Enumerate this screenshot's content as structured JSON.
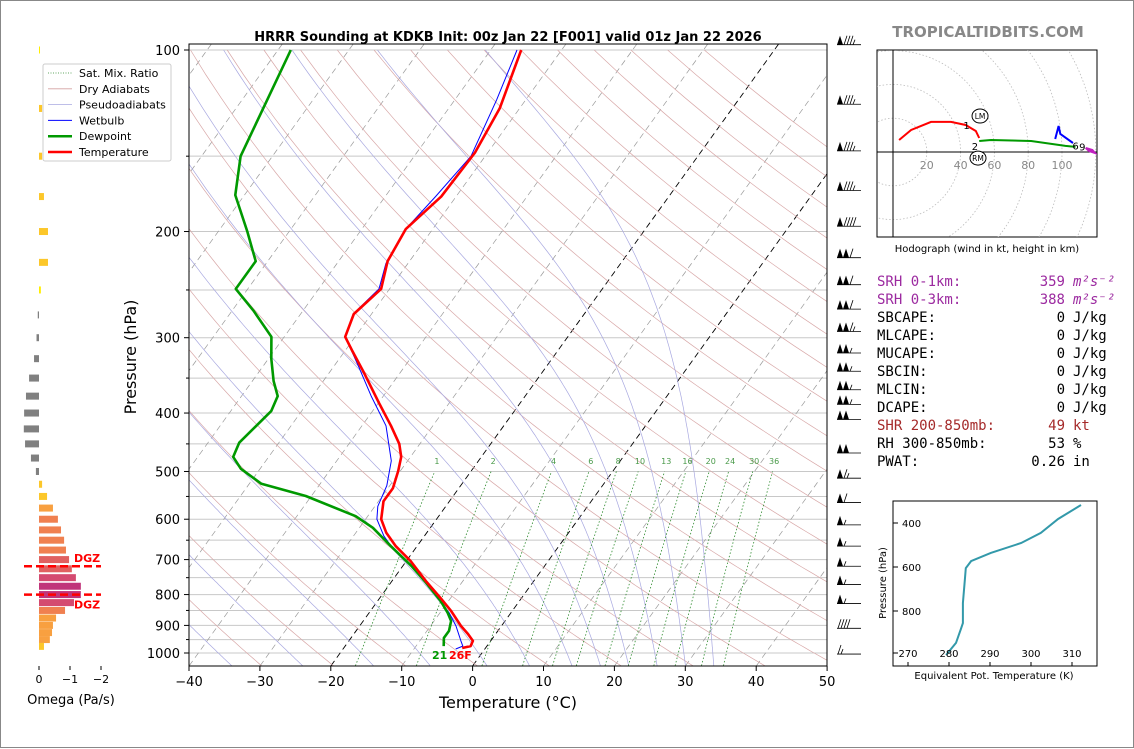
{
  "title": "HRRR Sounding at KDKB Init: 00z Jan 22 [F001] valid 01z Jan 22 2026",
  "watermark": "TROPICALTIDBITS.COM",
  "chart_data": [
    {
      "type": "line",
      "name": "skew-t",
      "xlabel": "Temperature (°C)",
      "ylabel": "Pressure (hPa)",
      "xlim": [
        -40,
        50
      ],
      "ylim": [
        1050,
        98
      ],
      "x_ticks": [
        -40,
        -30,
        -20,
        -10,
        0,
        10,
        20,
        30,
        40,
        50
      ],
      "x_tick_labels": [
        "−40",
        "−30",
        "−20",
        "−10",
        "0",
        "10",
        "20",
        "30",
        "40",
        "50"
      ],
      "y_ticks": [
        100,
        200,
        300,
        400,
        500,
        600,
        700,
        800,
        900,
        1000
      ],
      "y_tick_labels": [
        "100",
        "200",
        "300",
        "400",
        "500",
        "600",
        "700",
        "800",
        "900",
        "1000"
      ],
      "grid_pressures": [
        100,
        150,
        200,
        250,
        300,
        350,
        400,
        450,
        500,
        550,
        600,
        650,
        700,
        750,
        800,
        850,
        900,
        950,
        1000
      ],
      "legend": {
        "placement": "top-left",
        "entries": [
          {
            "label": "Sat. Mix. Ratio",
            "color": "#2e8b2e",
            "style": "dotted"
          },
          {
            "label": "Dry Adiabats",
            "color": "#d4a0a0",
            "style": "solid"
          },
          {
            "label": "Pseudoadiabats",
            "color": "#a8a8e0",
            "style": "solid"
          },
          {
            "label": "Wetbulb",
            "color": "#0000ff",
            "style": "solid"
          },
          {
            "label": "Dewpoint",
            "color": "#009900",
            "style": "solid"
          },
          {
            "label": "Temperature",
            "color": "#ff0000",
            "style": "solid"
          }
        ]
      },
      "series": [
        {
          "name": "Temperature",
          "color": "#ff0000",
          "pressure": [
            981,
            974,
            955,
            930,
            902,
            852,
            811,
            760,
            704,
            665,
            632,
            600,
            560,
            533,
            499,
            473,
            450,
            420,
            385,
            343,
            316,
            299,
            274,
            249,
            224,
            198,
            175,
            148,
            125,
            100
          ],
          "temp_c": [
            -3.3,
            -2.3,
            -2.5,
            -3.9,
            -5.7,
            -8.6,
            -11.4,
            -15.2,
            -19.4,
            -23.0,
            -25.7,
            -27.8,
            -29.3,
            -29.3,
            -30.3,
            -31.3,
            -32.9,
            -35.9,
            -39.9,
            -45.1,
            -48.9,
            -51.4,
            -52.5,
            -51.2,
            -53.1,
            -53.8,
            -52.1,
            -51.8,
            -52.8,
            -55.7
          ]
        },
        {
          "name": "Dewpoint",
          "color": "#009900",
          "pressure": [
            974,
            944,
            919,
            885,
            858,
            820,
            765,
            717,
            665,
            620,
            593,
            549,
            524,
            495,
            473,
            448,
            420,
            397,
            375,
            354,
            325,
            299,
            271,
            249,
            224,
            200,
            174,
            150,
            100
          ],
          "temp_c": [
            -6.1,
            -6.9,
            -6.9,
            -7.6,
            -8.9,
            -11.1,
            -15.0,
            -18.8,
            -23.7,
            -28.1,
            -31.7,
            -40.8,
            -48.3,
            -52.7,
            -55.0,
            -55.6,
            -54.9,
            -54.3,
            -54.9,
            -57.0,
            -59.6,
            -61.8,
            -66.9,
            -71.7,
            -71.7,
            -75.9,
            -81.3,
            -84.5,
            -88.2
          ]
        },
        {
          "name": "Wetbulb",
          "color": "#0000ff",
          "pressure": [
            985,
            974,
            955,
            902,
            858,
            811,
            765,
            717,
            672,
            640,
            600,
            571,
            528,
            480,
            420,
            375,
            334,
            299,
            274,
            249,
            226,
            198,
            175,
            150,
            121,
            100
          ],
          "temp_c": [
            -4.1,
            -3.4,
            -4.2,
            -6.4,
            -8.7,
            -11.7,
            -15.0,
            -18.8,
            -23.1,
            -25.7,
            -28.4,
            -29.6,
            -30.4,
            -32.3,
            -36.6,
            -41.7,
            -46.6,
            -51.4,
            -52.6,
            -51.5,
            -53.1,
            -53.8,
            -52.9,
            -52.0,
            -54.1,
            -56.3
          ]
        }
      ],
      "surface_labels": {
        "dewpoint_f": "21",
        "temp_f": "26F"
      },
      "mixing_ratio_g_kg": [
        1,
        2,
        4,
        6,
        8,
        10,
        13,
        16,
        20,
        24,
        30,
        36
      ],
      "mixing_ratio_labels": [
        "1",
        "2",
        "4",
        "6",
        "8",
        "10",
        "13",
        "16",
        "20",
        "24",
        "30",
        "36"
      ],
      "dry_adiabat_theta_k": [
        230,
        240,
        250,
        260,
        270,
        280,
        290,
        300,
        310,
        320,
        330,
        340,
        350,
        360,
        370,
        380,
        390,
        400,
        410,
        420,
        430,
        440,
        450,
        460,
        470
      ],
      "pseudoadiabat_start_c_at_1050": [
        -44,
        -34,
        -24,
        -14,
        -6,
        2,
        8,
        14,
        18,
        22,
        26,
        30,
        34
      ],
      "highlighted_isotherms_c": [
        -20,
        0
      ],
      "wind_barbs": [
        {
          "p": 98,
          "speed_kt": 85
        },
        {
          "p": 123,
          "speed_kt": 85
        },
        {
          "p": 147,
          "speed_kt": 85
        },
        {
          "p": 171,
          "speed_kt": 85
        },
        {
          "p": 196,
          "speed_kt": 90
        },
        {
          "p": 221,
          "speed_kt": 110
        },
        {
          "p": 245,
          "speed_kt": 110
        },
        {
          "p": 269,
          "speed_kt": 110
        },
        {
          "p": 293,
          "speed_kt": 115
        },
        {
          "p": 318,
          "speed_kt": 105
        },
        {
          "p": 341,
          "speed_kt": 105
        },
        {
          "p": 366,
          "speed_kt": 105
        },
        {
          "p": 387,
          "speed_kt": 105
        },
        {
          "p": 410,
          "speed_kt": 100
        },
        {
          "p": 466,
          "speed_kt": 100
        },
        {
          "p": 513,
          "speed_kt": 65
        },
        {
          "p": 563,
          "speed_kt": 60
        },
        {
          "p": 613,
          "speed_kt": 55
        },
        {
          "p": 665,
          "speed_kt": 55
        },
        {
          "p": 718,
          "speed_kt": 55
        },
        {
          "p": 770,
          "speed_kt": 55
        },
        {
          "p": 828,
          "speed_kt": 55
        },
        {
          "p": 910,
          "speed_kt": 40
        },
        {
          "p": 1004,
          "speed_kt": 15
        }
      ]
    },
    {
      "type": "bar",
      "name": "omega",
      "xlabel": "Omega (Pa/s)",
      "xlim": [
        0.6,
        -2.3
      ],
      "x_ticks": [
        0,
        -1,
        -2
      ],
      "x_tick_labels": [
        "0",
        "−1",
        "−2"
      ],
      "pressure": [
        100,
        125,
        150,
        175,
        200,
        225,
        250,
        275,
        300,
        325,
        350,
        375,
        400,
        425,
        450,
        475,
        500,
        525,
        550,
        575,
        600,
        625,
        650,
        675,
        700,
        725,
        750,
        775,
        800,
        825,
        850,
        875,
        900,
        925,
        950,
        975
      ],
      "values": [
        -0.03,
        -0.1,
        -0.1,
        -0.16,
        -0.29,
        -0.29,
        -0.06,
        0.04,
        0.08,
        0.16,
        0.32,
        0.42,
        0.48,
        0.49,
        0.45,
        0.26,
        0.1,
        -0.1,
        -0.26,
        -0.45,
        -0.61,
        -0.71,
        -0.81,
        -0.87,
        -0.97,
        -1.06,
        -1.19,
        -1.35,
        -1.35,
        -1.13,
        -0.84,
        -0.55,
        -0.45,
        -0.42,
        -0.35,
        -0.16
      ],
      "dgz": {
        "top_p": 718,
        "bottom_p": 800,
        "label": "DGZ"
      }
    },
    {
      "type": "line",
      "name": "hodograph",
      "caption": "Hodograph (wind in kt, height in km)",
      "ring_labels": [
        "20",
        "40",
        "60",
        "80",
        "100"
      ],
      "ring_values_kt": [
        20,
        40,
        60,
        80,
        100
      ],
      "segments": [
        {
          "name": "0-1km",
          "color": "#ff0000",
          "u": [
            3.6,
            10.7,
            22.5,
            34.3,
            43,
            49,
            51
          ],
          "v": [
            7.1,
            13,
            17.8,
            17.8,
            16,
            12.4,
            8.3
          ]
        },
        {
          "name": "1-3km",
          "color": "#009900",
          "u": [
            51,
            58,
            81.7,
            102,
            108
          ],
          "v": [
            6.5,
            7.1,
            6.5,
            3.6,
            3
          ]
        },
        {
          "name": "3-6km",
          "color": "#0000ff",
          "u": [
            96,
            98,
            99,
            106.5
          ],
          "v": [
            7.7,
            15.4,
            10.7,
            5.3
          ]
        },
        {
          "name": "6-9km",
          "color": "#c020c0",
          "u": [
            114,
            118,
            119.5,
            116,
            114
          ],
          "v": [
            2.4,
            1.2,
            -0.6,
            0.6,
            2.4
          ]
        }
      ],
      "height_labels": [
        {
          "text": "1",
          "u": 43.5,
          "v": 16
        },
        {
          "text": "2",
          "u": 48.5,
          "v": 3.5
        },
        {
          "text": "6",
          "u": 108,
          "v": 3.8
        },
        {
          "text": "9",
          "u": 112,
          "v": 3.2
        }
      ],
      "storm_motion": [
        {
          "label": "LM",
          "u": 51.5,
          "v": 21.3
        },
        {
          "label": "RM",
          "u": 50.3,
          "v": -3.6
        }
      ]
    },
    {
      "type": "line",
      "name": "theta-e",
      "xlabel": "Equivalent Pot. Temperature (K)",
      "ylabel": "Pressure (hPa)",
      "x_ticks": [
        270,
        280,
        290,
        300,
        310
      ],
      "x_tick_labels": [
        "270",
        "280",
        "290",
        "300",
        "310"
      ],
      "y_ticks": [
        400,
        600,
        800
      ],
      "y_tick_labels": [
        "400",
        "600",
        "800"
      ],
      "color": "#3399aa",
      "pressure": [
        318,
        382,
        445,
        491,
        536,
        573,
        605,
        650,
        764,
        855,
        882,
        945,
        1000
      ],
      "theta_e_k": [
        312.2,
        306.6,
        302.4,
        297.6,
        290.2,
        285.4,
        284.1,
        283.9,
        283.4,
        283.4,
        282.9,
        281.7,
        279.3
      ]
    }
  ],
  "indices": [
    {
      "label": "SRH 0-1km:",
      "value": "359",
      "unit": "m²s⁻²",
      "color": "purple"
    },
    {
      "label": "SRH 0-3km:",
      "value": "388",
      "unit": "m²s⁻²",
      "color": "purple"
    },
    {
      "label": "SBCAPE:",
      "value": "0",
      "unit": "J/kg",
      "color": "black"
    },
    {
      "label": "MLCAPE:",
      "value": "0",
      "unit": "J/kg",
      "color": "black"
    },
    {
      "label": "MUCAPE:",
      "value": "0",
      "unit": "J/kg",
      "color": "black"
    },
    {
      "label": "SBCIN:",
      "value": "0",
      "unit": "J/kg",
      "color": "black"
    },
    {
      "label": "MLCIN:",
      "value": "0",
      "unit": "J/kg",
      "color": "black"
    },
    {
      "label": "DCAPE:",
      "value": "0",
      "unit": "J/kg",
      "color": "black"
    },
    {
      "label": "SHR 200-850mb:",
      "value": "49",
      "unit": "kt",
      "color": "brown"
    },
    {
      "label": "RH 300-850mb:",
      "value": "53",
      "unit": "%",
      "color": "black"
    },
    {
      "label": "PWAT:",
      "value": "0.26",
      "unit": "in",
      "color": "black"
    }
  ]
}
